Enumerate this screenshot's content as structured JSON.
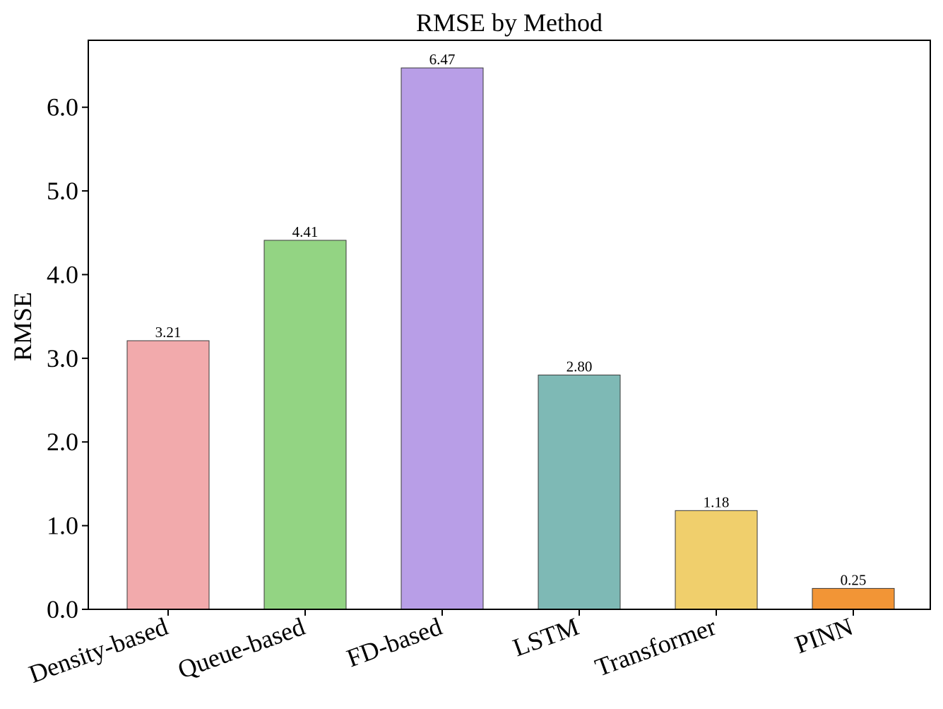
{
  "chart_data": {
    "type": "bar",
    "title": "RMSE by Method",
    "xlabel": "",
    "ylabel": "RMSE",
    "categories": [
      "Density-based",
      "Queue-based",
      "FD-based",
      "LSTM",
      "Transformer",
      "PINN"
    ],
    "values": [
      3.21,
      4.41,
      6.47,
      2.8,
      1.18,
      0.25
    ],
    "value_labels": [
      "3.21",
      "4.41",
      "6.47",
      "2.80",
      "1.18",
      "0.25"
    ],
    "colors": [
      "#f2aaac",
      "#93d483",
      "#b89ee7",
      "#7eb9b5",
      "#f0cf6c",
      "#f29536"
    ],
    "ylim": [
      0,
      6.8
    ],
    "yticks": [
      0,
      1,
      2,
      3,
      4,
      5,
      6
    ],
    "ytick_labels": [
      "0.0",
      "1.0",
      "2.0",
      "3.0",
      "4.0",
      "5.0",
      "6.0"
    ],
    "grid": false,
    "legend": "none"
  }
}
